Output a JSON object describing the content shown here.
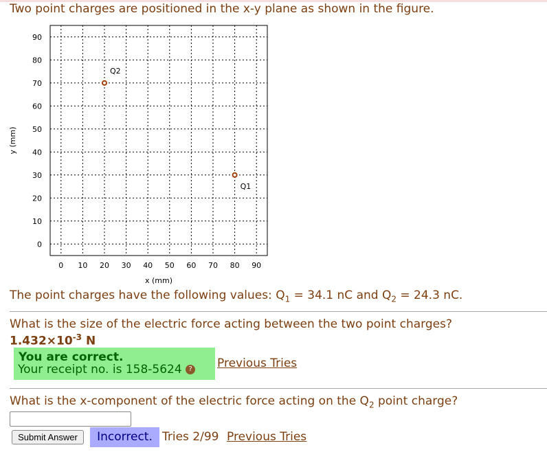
{
  "question_intro": "Two point charges are positioned in the x-y plane as shown in the figure.",
  "chart_data": {
    "type": "scatter",
    "xlabel": "x (mm)",
    "ylabel": "y (mm)",
    "xlim": [
      -5,
      95
    ],
    "ylim": [
      -5,
      95
    ],
    "xticks": [
      0,
      10,
      20,
      30,
      40,
      50,
      60,
      70,
      80,
      90
    ],
    "yticks": [
      0,
      10,
      20,
      30,
      40,
      50,
      60,
      70,
      80,
      90
    ],
    "grid": true,
    "points": [
      {
        "label": "Q1",
        "x": 80,
        "y": 30
      },
      {
        "label": "Q2",
        "x": 20,
        "y": 70
      }
    ],
    "marker_color": "#a0400a"
  },
  "values_text": {
    "prefix": "The point charges have the following values: Q",
    "sub1": "1",
    "mid": " = 34.1 nC and Q",
    "sub2": "2",
    "suffix": " = 24.3 nC."
  },
  "q1": {
    "text": "What is the size of the electric force acting between the two point charges?",
    "answer_mantissa": "1.432×10",
    "answer_exp": "-3",
    "answer_unit": " N",
    "status": "You are correct.",
    "receipt": "Your receipt no. is 158-5624",
    "previous_tries": "Previous Tries"
  },
  "q2": {
    "text_prefix": "What is the x-component of the electric force acting on the Q",
    "text_sub": "2",
    "text_suffix": " point charge?",
    "input_value": "",
    "submit": "Submit Answer",
    "status": "Incorrect.",
    "tries": "Tries 2/99",
    "previous_tries": "Previous Tries"
  }
}
